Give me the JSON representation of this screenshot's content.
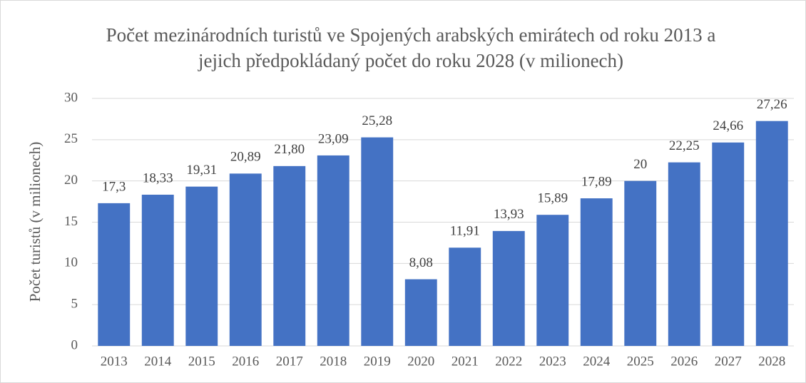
{
  "chart_data": {
    "type": "bar",
    "title": "Počet mezinárodních turistů ve Spojených arabských emirátech od roku 2013 a jejich předpokládaný počet do roku 2028 (v milionech)",
    "ylabel": "Počet turistů (v milionech)",
    "categories": [
      "2013",
      "2014",
      "2015",
      "2016",
      "2017",
      "2018",
      "2019",
      "2020",
      "2021",
      "2022",
      "2023",
      "2024",
      "2025",
      "2026",
      "2027",
      "2028"
    ],
    "values": [
      17.3,
      18.33,
      19.31,
      20.89,
      21.8,
      23.09,
      25.28,
      8.08,
      11.91,
      13.93,
      15.89,
      17.89,
      20,
      22.25,
      24.66,
      27.26
    ],
    "value_labels": [
      "17,3",
      "18,33",
      "19,31",
      "20,89",
      "21,80",
      "23,09",
      "25,28",
      "8,08",
      "11,91",
      "13,93",
      "15,89",
      "17,89",
      "20",
      "22,25",
      "24,66",
      "27,26"
    ],
    "color": "#4472c4",
    "ylim": [
      0,
      30
    ],
    "yticks": [
      0,
      5,
      10,
      15,
      20,
      25,
      30
    ],
    "grid": true
  }
}
